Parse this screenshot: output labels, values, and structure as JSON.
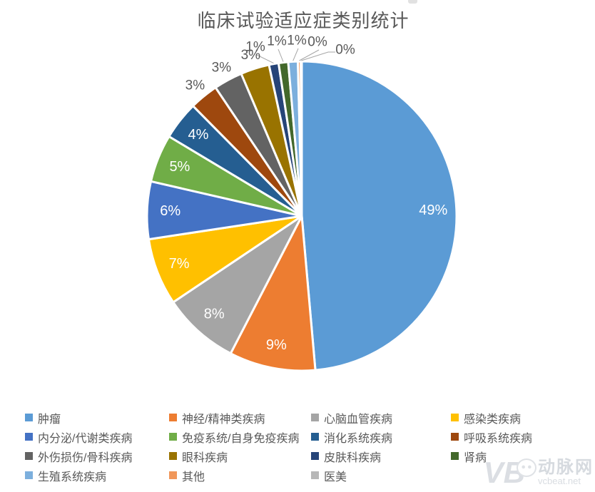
{
  "chart_data": {
    "type": "pie",
    "title": "临床试验适应症类别统计",
    "legend_position": "bottom",
    "label_style": "percent",
    "slices": [
      {
        "label": "肿瘤",
        "value": 49,
        "value_display": "49%",
        "value_exact": 48.6,
        "color": "#5B9BD5"
      },
      {
        "label": "神经/精神类疾病",
        "value": 9,
        "value_display": "9%",
        "value_exact": 9,
        "color": "#ED7D31"
      },
      {
        "label": "心脑血管疾病",
        "value": 8,
        "value_display": "8%",
        "value_exact": 8,
        "color": "#A5A5A5"
      },
      {
        "label": "感染类疾病",
        "value": 7,
        "value_display": "7%",
        "value_exact": 7,
        "color": "#FFC000"
      },
      {
        "label": "内分泌/代谢类疾病",
        "value": 6,
        "value_display": "6%",
        "value_exact": 6,
        "color": "#4472C4"
      },
      {
        "label": "免疫系统/自身免疫疾病",
        "value": 5,
        "value_display": "5%",
        "value_exact": 5,
        "color": "#70AD47"
      },
      {
        "label": "消化系统疾病",
        "value": 4,
        "value_display": "4%",
        "value_exact": 4,
        "color": "#255E91"
      },
      {
        "label": "呼吸系统疾病",
        "value": 3,
        "value_display": "3%",
        "value_exact": 3,
        "color": "#9E480E"
      },
      {
        "label": "外伤损伤/骨科疾病",
        "value": 3,
        "value_display": "3%",
        "value_exact": 3,
        "color": "#636363"
      },
      {
        "label": "眼科疾病",
        "value": 3,
        "value_display": "3%",
        "value_exact": 3,
        "color": "#997300"
      },
      {
        "label": "皮肤科疾病",
        "value": 1,
        "value_display": "1%",
        "value_exact": 1,
        "color": "#264478"
      },
      {
        "label": "肾病",
        "value": 1,
        "value_display": "1%",
        "value_exact": 1,
        "color": "#43682B"
      },
      {
        "label": "生殖系统疾病",
        "value": 1,
        "value_display": "1%",
        "value_exact": 1,
        "color": "#7CAFDD"
      },
      {
        "label": "其他",
        "value": 0,
        "value_display": "0%",
        "value_exact": 0.3,
        "color": "#F1975A"
      },
      {
        "label": "医美",
        "value": 0,
        "value_display": "0%",
        "value_exact": 0.1,
        "color": "#B7B7B7"
      }
    ]
  },
  "watermark": {
    "logo_text": "VB",
    "brand": "动脉网",
    "site": "vcbeat.net"
  }
}
